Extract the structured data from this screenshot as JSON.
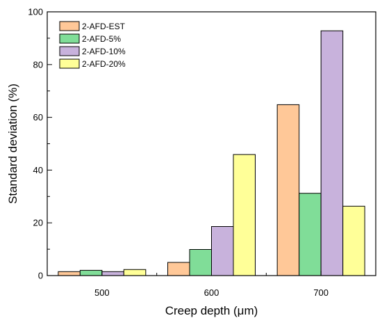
{
  "chart_data": {
    "type": "bar",
    "xlabel": "Creep depth (μm)",
    "ylabel": "Standard deviation (%)",
    "categories": [
      "500",
      "600",
      "700"
    ],
    "ylim": [
      0,
      100
    ],
    "yticks": [
      0,
      20,
      40,
      60,
      80,
      100
    ],
    "grid": false,
    "legend_position": "top-left",
    "series": [
      {
        "name": "2-AFD-EST",
        "color": "#FFC898",
        "values": [
          1.5,
          5.0,
          64.8
        ]
      },
      {
        "name": "2-AFD-5%",
        "color": "#80DD98",
        "values": [
          2.0,
          9.9,
          31.2
        ]
      },
      {
        "name": "2-AFD-10%",
        "color": "#C8B2DC",
        "values": [
          1.5,
          18.6,
          92.8
        ]
      },
      {
        "name": "2-AFD-20%",
        "color": "#FFFF98",
        "values": [
          2.3,
          45.9,
          26.3
        ]
      }
    ]
  }
}
